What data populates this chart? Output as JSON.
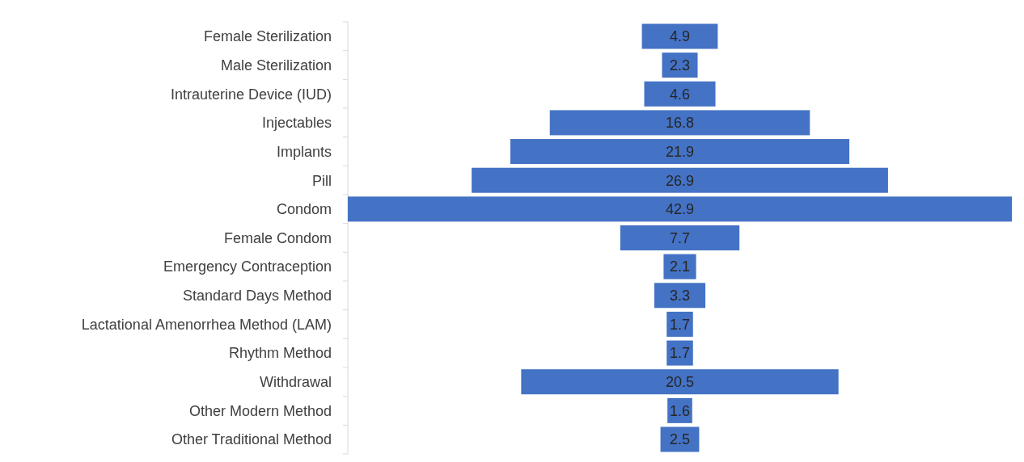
{
  "chart_data": {
    "type": "other",
    "categories": [
      "Female Sterilization",
      "Male Sterilization",
      "Intrauterine Device (IUD)",
      "Injectables",
      "Implants",
      "Pill",
      "Condom",
      "Female Condom",
      "Emergency Contraception",
      "Standard Days Method",
      "Lactational Amenorrhea Method (LAM)",
      "Rhythm Method",
      "Withdrawal",
      "Other Modern Method",
      "Other Traditional Method"
    ],
    "values": [
      4.9,
      2.3,
      4.6,
      16.8,
      21.9,
      26.9,
      42.9,
      7.7,
      2.1,
      3.3,
      1.7,
      1.7,
      20.5,
      1.6,
      2.5
    ],
    "color": "#4472c4",
    "data_labels": true
  }
}
